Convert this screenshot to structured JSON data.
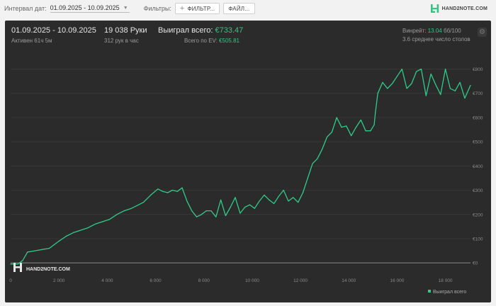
{
  "toolbar": {
    "interval_label": "Интервал дат:",
    "date_range": "01.09.2025 - 10.09.2025",
    "filters_label": "Фильтры:",
    "filter_button": "ФИЛЬТР...",
    "files_button": "ФАЙЛ...",
    "logo_text": "HAND2NOTE.COM"
  },
  "summary": {
    "period": "01.09.2025 - 10.09.2025",
    "active": "Активен 61ч 5м",
    "hands": "19 038 Руки",
    "hands_per_hour": "312 рук в час",
    "won_label": "Выиграл всего:",
    "won_value": "€733.47",
    "ev_label": "Всего по EV:",
    "ev_value": "€505.81",
    "winrate_label": "Винрейт:",
    "winrate_value": "13.04",
    "winrate_unit": "бб/100",
    "tables": "3.6 среднее число столов"
  },
  "watermark": "HAND2NOTE.COM",
  "colors": {
    "line": "#2ecc8a",
    "background": "#2b2b2b",
    "accent": "#35c486"
  },
  "chart_data": {
    "type": "line",
    "x": [
      0,
      300,
      500,
      700,
      1000,
      1300,
      1600,
      2000,
      2300,
      2600,
      2900,
      3200,
      3500,
      3800,
      4100,
      4400,
      4700,
      5000,
      5300,
      5500,
      5800,
      6100,
      6300,
      6500,
      6700,
      6900,
      7100,
      7300,
      7500,
      7700,
      7900,
      8100,
      8300,
      8500,
      8700,
      8900,
      9100,
      9300,
      9500,
      9700,
      9900,
      10100,
      10300,
      10500,
      10700,
      10900,
      11100,
      11300,
      11500,
      11700,
      11900,
      12100,
      12300,
      12500,
      12700,
      12900,
      13100,
      13300,
      13500,
      13700,
      13900,
      14100,
      14300,
      14500,
      14700,
      14900,
      15050,
      15100,
      15200,
      15400,
      15600,
      15800,
      16000,
      16200,
      16400,
      16600,
      16800,
      17000,
      17200,
      17400,
      17600,
      17800,
      18000,
      18200,
      18400,
      18600,
      18800,
      19038
    ],
    "y": [
      -5,
      -5,
      10,
      45,
      50,
      55,
      60,
      90,
      110,
      125,
      135,
      145,
      160,
      170,
      180,
      200,
      215,
      225,
      240,
      250,
      280,
      305,
      295,
      290,
      300,
      295,
      310,
      255,
      215,
      190,
      200,
      215,
      215,
      190,
      260,
      195,
      230,
      270,
      205,
      230,
      240,
      225,
      255,
      280,
      260,
      245,
      275,
      300,
      255,
      270,
      250,
      290,
      350,
      410,
      430,
      470,
      520,
      540,
      600,
      560,
      565,
      525,
      560,
      590,
      545,
      545,
      570,
      620,
      700,
      745,
      720,
      740,
      770,
      800,
      720,
      740,
      790,
      800,
      690,
      780,
      735,
      695,
      800,
      720,
      710,
      745,
      680,
      733
    ]
  },
  "axis": {
    "y_ticks": [
      "€800",
      "€700",
      "€600",
      "€500",
      "€400",
      "€300",
      "€200",
      "€100",
      "€0"
    ],
    "x_ticks": [
      "0",
      "2 000",
      "4 000",
      "6 000",
      "8 000",
      "10 000",
      "12 000",
      "14 000",
      "16 000",
      "18 000"
    ],
    "x_tick_values": [
      0,
      2000,
      4000,
      6000,
      8000,
      10000,
      12000,
      14000,
      16000,
      18000
    ],
    "y_tick_values": [
      800,
      700,
      600,
      500,
      400,
      300,
      200,
      100,
      0
    ],
    "xlim": [
      0,
      19038
    ],
    "ylim": [
      -20,
      860
    ]
  },
  "legend": {
    "label": "Выиграл всего"
  }
}
